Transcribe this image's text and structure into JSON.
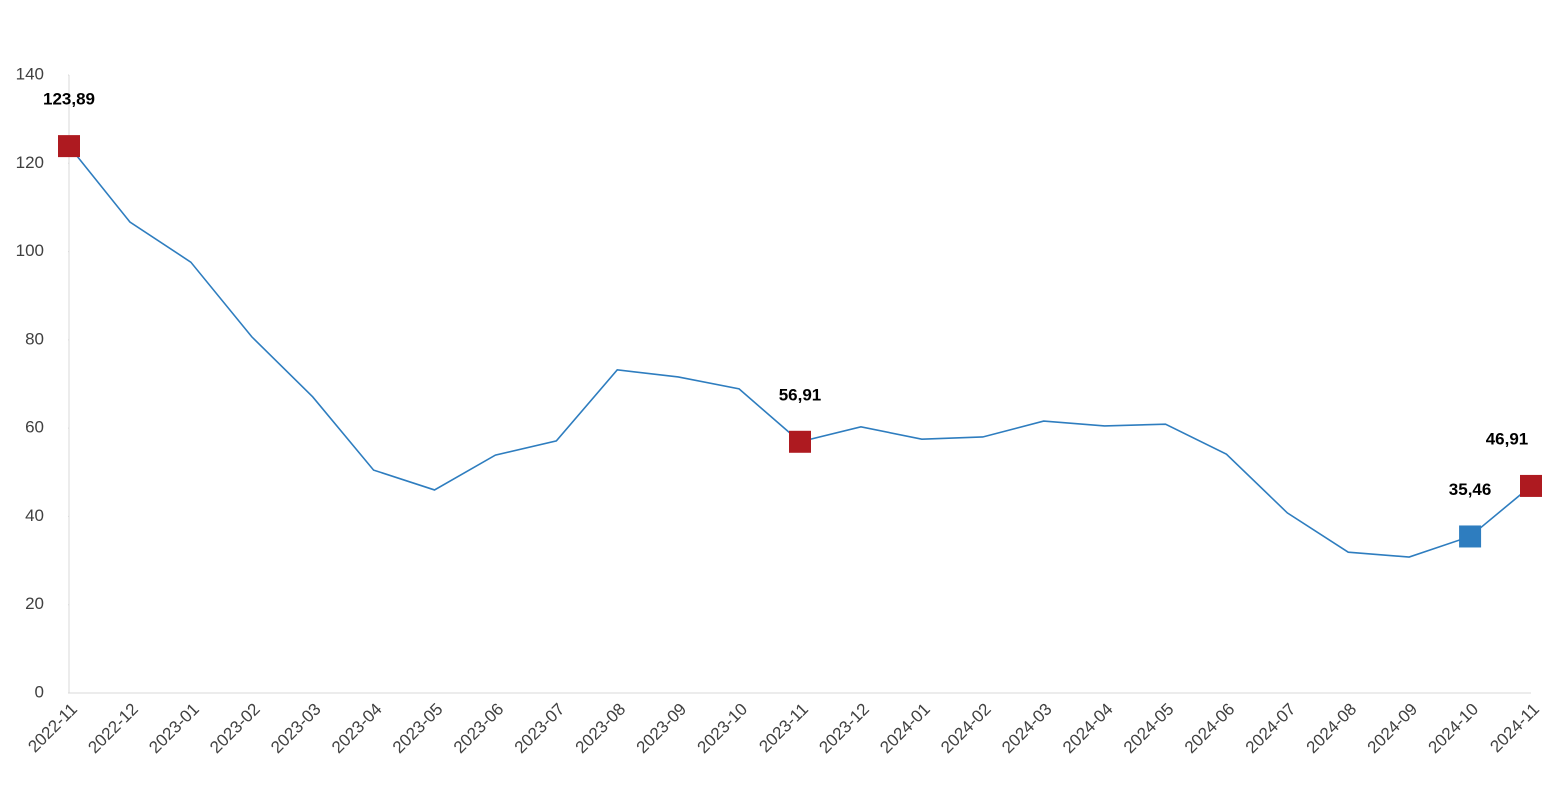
{
  "chart_data": {
    "type": "line",
    "categories": [
      "2022-11",
      "2022-12",
      "2023-01",
      "2023-02",
      "2023-03",
      "2023-04",
      "2023-05",
      "2023-06",
      "2023-07",
      "2023-08",
      "2023-09",
      "2023-10",
      "2023-11",
      "2023-12",
      "2024-01",
      "2024-02",
      "2024-03",
      "2024-04",
      "2024-05",
      "2024-06",
      "2024-07",
      "2024-08",
      "2024-09",
      "2024-10",
      "2024-11"
    ],
    "series": [
      {
        "color": "#2e7dbf",
        "values": [
          123.89,
          106.7,
          97.6,
          80.7,
          67.1,
          50.5,
          46.0,
          53.9,
          57.1,
          73.2,
          71.6,
          68.9,
          56.91,
          60.3,
          57.5,
          58.0,
          61.6,
          60.5,
          60.9,
          54.1,
          40.8,
          31.9,
          30.8,
          35.46,
          46.91
        ],
        "value_labels": [
          "123,89",
          null,
          null,
          null,
          null,
          null,
          null,
          null,
          null,
          null,
          null,
          null,
          "56,91",
          null,
          null,
          null,
          null,
          null,
          null,
          null,
          null,
          null,
          null,
          "35,46",
          "46,91"
        ],
        "marker_colors": [
          "#ae1a20",
          null,
          null,
          null,
          null,
          null,
          null,
          null,
          null,
          null,
          null,
          null,
          "#ae1a20",
          null,
          null,
          null,
          null,
          null,
          null,
          null,
          null,
          null,
          null,
          "#2e7dbf",
          "#ae1a20"
        ]
      }
    ],
    "ylim": [
      0,
      140
    ],
    "yticks": [
      0,
      20,
      40,
      60,
      80,
      100,
      120,
      140
    ],
    "grid": false
  }
}
